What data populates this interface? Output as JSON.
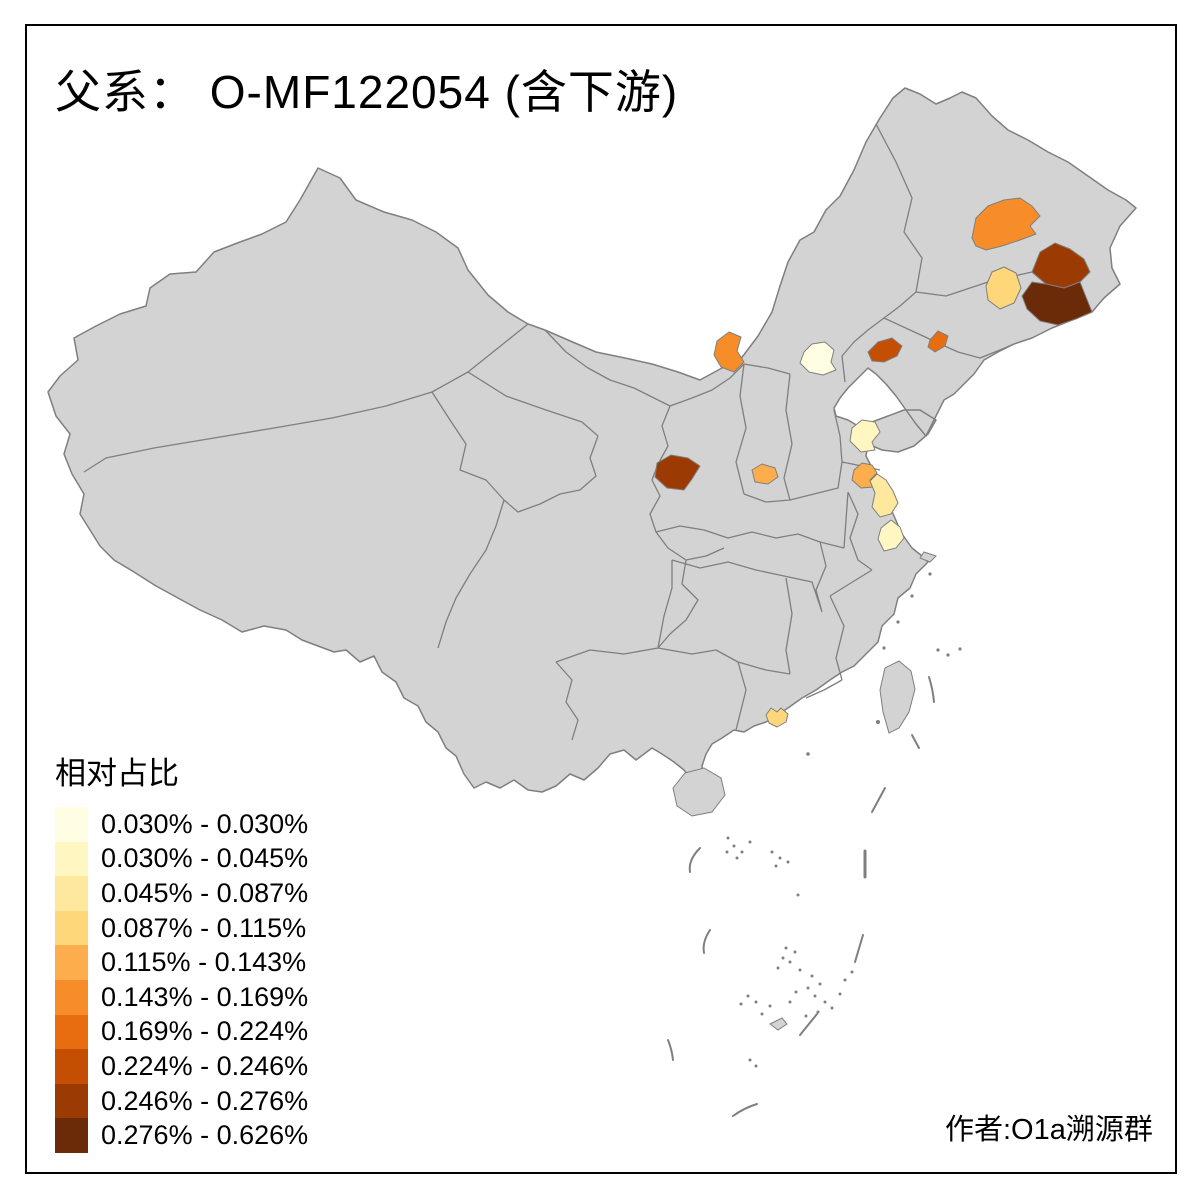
{
  "title": "父系： O-MF122054 (含下游)",
  "attribution": "作者:O1a溯源群",
  "legend": {
    "title": "相对占比",
    "classes": [
      {
        "label": "0.030% - 0.030%",
        "color": "#FFFEE3"
      },
      {
        "label": "0.030% - 0.045%",
        "color": "#FFF6C2"
      },
      {
        "label": "0.045% - 0.087%",
        "color": "#FEE89E"
      },
      {
        "label": "0.087% - 0.115%",
        "color": "#FED77A"
      },
      {
        "label": "0.115% - 0.143%",
        "color": "#FDAD4B"
      },
      {
        "label": "0.143% - 0.169%",
        "color": "#F68D29"
      },
      {
        "label": "0.169% - 0.224%",
        "color": "#E86C10"
      },
      {
        "label": "0.224% - 0.246%",
        "color": "#C44F02"
      },
      {
        "label": "0.246% - 0.276%",
        "color": "#9C3A03"
      },
      {
        "label": "0.276% - 0.626%",
        "color": "#6B2A08"
      }
    ]
  },
  "map": {
    "land_color": "#D3D3D3",
    "border_color": "#7F7F7F",
    "sea_color": "#FFFFFF",
    "frame_color": "#000000",
    "regions": [
      {
        "id": "heilongjiang-central",
        "range": "0.143% - 0.169%",
        "class": 6,
        "color": "#F68D29"
      },
      {
        "id": "jilin-changchun",
        "range": "0.087% - 0.115%",
        "class": 4,
        "color": "#FED77A"
      },
      {
        "id": "heilongjiang-southeast",
        "range": "0.246% - 0.276%",
        "class": 9,
        "color": "#9C3A03"
      },
      {
        "id": "jilin-east",
        "range": "0.276% - 0.626%",
        "class": 10,
        "color": "#6B2A08"
      },
      {
        "id": "liaoning-west",
        "range": "0.224% - 0.246%",
        "class": 8,
        "color": "#C44F02"
      },
      {
        "id": "liaoning-central",
        "range": "0.169% - 0.224%",
        "class": 7,
        "color": "#E86C10"
      },
      {
        "id": "hebei-northwest",
        "range": "0.143% - 0.169%",
        "class": 6,
        "color": "#F68D29"
      },
      {
        "id": "beijing",
        "range": "0.030% - 0.030%",
        "class": 1,
        "color": "#FFFEE3"
      },
      {
        "id": "shaanxi-north",
        "range": "0.246% - 0.276%",
        "class": 9,
        "color": "#9C3A03"
      },
      {
        "id": "shanxi-southeast",
        "range": "0.115% - 0.143%",
        "class": 5,
        "color": "#FDAD4B"
      },
      {
        "id": "shandong-central",
        "range": "0.030% - 0.045%",
        "class": 2,
        "color": "#FFF6C2"
      },
      {
        "id": "jiangsu-lianyungang",
        "range": "0.115% - 0.143%",
        "class": 5,
        "color": "#FDAD4B"
      },
      {
        "id": "jiangsu-yancheng",
        "range": "0.045% - 0.087%",
        "class": 3,
        "color": "#FEE89E"
      },
      {
        "id": "jiangsu-nantong",
        "range": "0.030% - 0.045%",
        "class": 2,
        "color": "#FFF6C2"
      },
      {
        "id": "guangdong-pearl-delta",
        "range": "0.087% - 0.115%",
        "class": 4,
        "color": "#FED77A"
      }
    ]
  }
}
